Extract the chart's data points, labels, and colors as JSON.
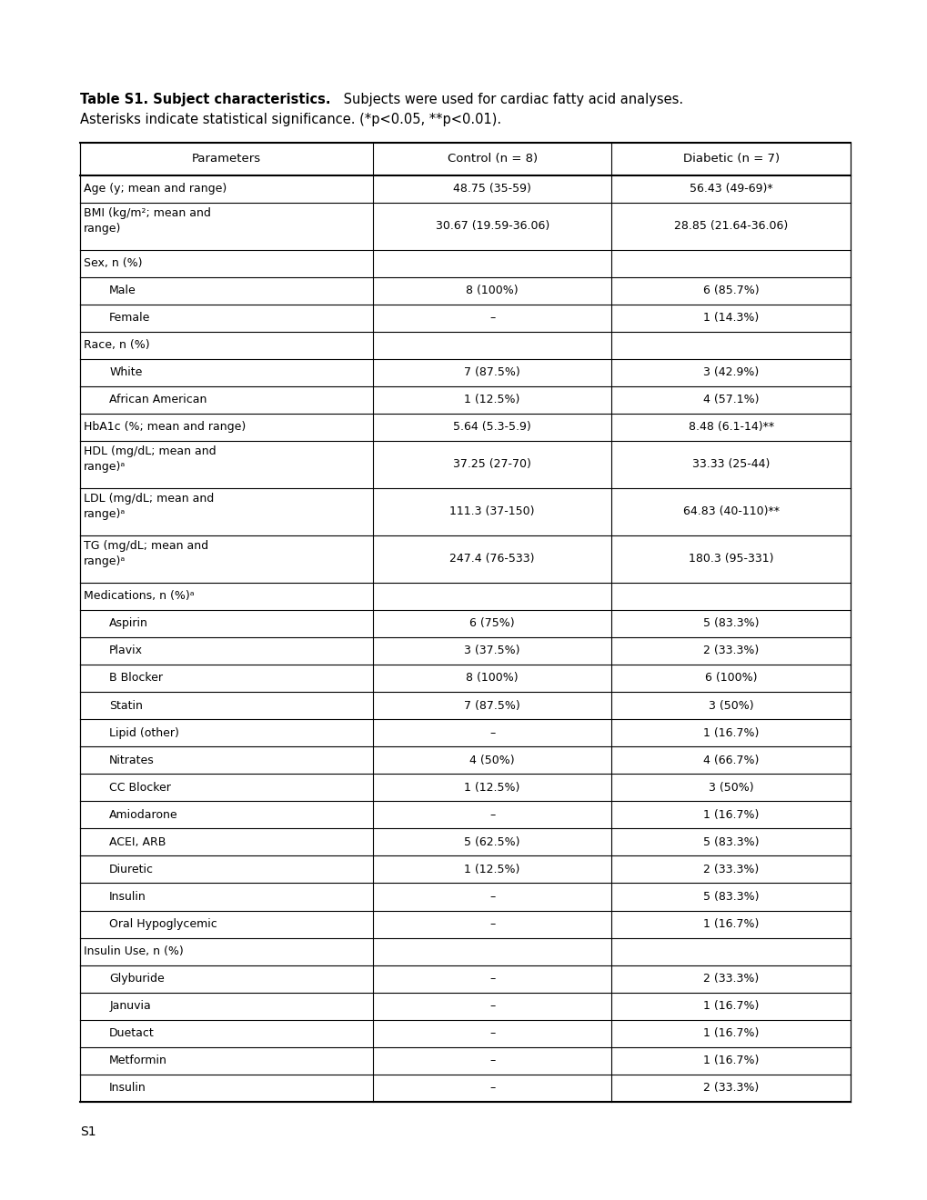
{
  "title_bold": "Table S1. Subject characteristics.",
  "title_normal": " Subjects were used for cardiac fatty acid analyses.",
  "title_line2": "Asterisks indicate statistical significance. (*p<0.05, **p<0.01).",
  "footer": "S1",
  "col_headers": [
    "Parameters",
    "Control (n = 8)",
    "Diabetic (n = 7)"
  ],
  "rows": [
    {
      "cells": [
        "Age (y; mean and range)",
        "48.75 (35-59)",
        "56.43 (49-69)*"
      ],
      "indent": false,
      "section": false
    },
    {
      "cells": [
        "BMI (kg/m²; mean and\nrange)",
        "30.67 (19.59-36.06)",
        "28.85 (21.64-36.06)"
      ],
      "indent": false,
      "section": false
    },
    {
      "cells": [
        "Sex, n (%)",
        "",
        ""
      ],
      "indent": false,
      "section": true
    },
    {
      "cells": [
        "Male",
        "8 (100%)",
        "6 (85.7%)"
      ],
      "indent": true,
      "section": false
    },
    {
      "cells": [
        "Female",
        "–",
        "1 (14.3%)"
      ],
      "indent": true,
      "section": false
    },
    {
      "cells": [
        "Race, n (%)",
        "",
        ""
      ],
      "indent": false,
      "section": true
    },
    {
      "cells": [
        "White",
        "7 (87.5%)",
        "3 (42.9%)"
      ],
      "indent": true,
      "section": false
    },
    {
      "cells": [
        "African American",
        "1 (12.5%)",
        "4 (57.1%)"
      ],
      "indent": true,
      "section": false
    },
    {
      "cells": [
        "HbA1c (%; mean and range)",
        "5.64 (5.3-5.9)",
        "8.48 (6.1-14)**"
      ],
      "indent": false,
      "section": false
    },
    {
      "cells": [
        "HDL (mg/dL; mean and\nrange)ᵃ",
        "37.25 (27-70)",
        "33.33 (25-44)"
      ],
      "indent": false,
      "section": false
    },
    {
      "cells": [
        "LDL (mg/dL; mean and\nrange)ᵃ",
        "111.3 (37-150)",
        "64.83 (40-110)**"
      ],
      "indent": false,
      "section": false
    },
    {
      "cells": [
        "TG (mg/dL; mean and\nrange)ᵃ",
        "247.4 (76-533)",
        "180.3 (95-331)"
      ],
      "indent": false,
      "section": false
    },
    {
      "cells": [
        "Medications, n (%)ᵃ",
        "",
        ""
      ],
      "indent": false,
      "section": true
    },
    {
      "cells": [
        "Aspirin",
        "6 (75%)",
        "5 (83.3%)"
      ],
      "indent": true,
      "section": false
    },
    {
      "cells": [
        "Plavix",
        "3 (37.5%)",
        "2 (33.3%)"
      ],
      "indent": true,
      "section": false
    },
    {
      "cells": [
        "B Blocker",
        "8 (100%)",
        "6 (100%)"
      ],
      "indent": true,
      "section": false
    },
    {
      "cells": [
        "Statin",
        "7 (87.5%)",
        "3 (50%)"
      ],
      "indent": true,
      "section": false
    },
    {
      "cells": [
        "Lipid (other)",
        "–",
        "1 (16.7%)"
      ],
      "indent": true,
      "section": false
    },
    {
      "cells": [
        "Nitrates",
        "4 (50%)",
        "4 (66.7%)"
      ],
      "indent": true,
      "section": false
    },
    {
      "cells": [
        "CC Blocker",
        "1 (12.5%)",
        "3 (50%)"
      ],
      "indent": true,
      "section": false
    },
    {
      "cells": [
        "Amiodarone",
        "–",
        "1 (16.7%)"
      ],
      "indent": true,
      "section": false
    },
    {
      "cells": [
        "ACEI, ARB",
        "5 (62.5%)",
        "5 (83.3%)"
      ],
      "indent": true,
      "section": false
    },
    {
      "cells": [
        "Diuretic",
        "1 (12.5%)",
        "2 (33.3%)"
      ],
      "indent": true,
      "section": false
    },
    {
      "cells": [
        "Insulin",
        "–",
        "5 (83.3%)"
      ],
      "indent": true,
      "section": false
    },
    {
      "cells": [
        "Oral Hypoglycemic",
        "–",
        "1 (16.7%)"
      ],
      "indent": true,
      "section": false
    },
    {
      "cells": [
        "Insulin Use, n (%)",
        "",
        ""
      ],
      "indent": false,
      "section": true
    },
    {
      "cells": [
        "Glyburide",
        "–",
        "2 (33.3%)"
      ],
      "indent": true,
      "section": false
    },
    {
      "cells": [
        "Januvia",
        "–",
        "1 (16.7%)"
      ],
      "indent": true,
      "section": false
    },
    {
      "cells": [
        "Duetact",
        "–",
        "1 (16.7%)"
      ],
      "indent": true,
      "section": false
    },
    {
      "cells": [
        "Metformin",
        "–",
        "1 (16.7%)"
      ],
      "indent": true,
      "section": false
    },
    {
      "cells": [
        "Insulin",
        "–",
        "2 (33.3%)"
      ],
      "indent": true,
      "section": false
    }
  ],
  "font_size": 9.0,
  "background_color": "#ffffff",
  "text_color": "#000000"
}
